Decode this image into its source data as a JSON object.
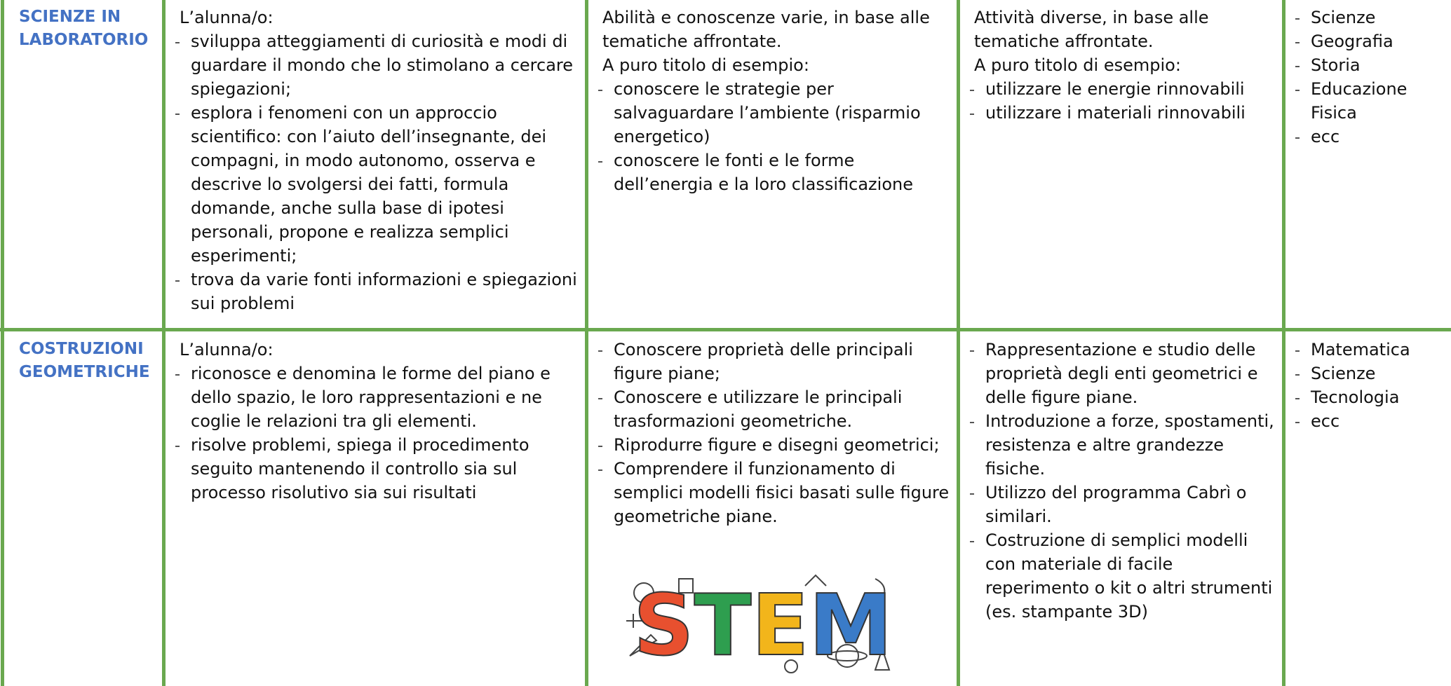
{
  "table": {
    "rows": [
      {
        "cells": [
          {
            "title": "SCIENZE IN LABORATORIO"
          },
          {
            "lines": [
              "L’alunna/o:"
            ],
            "items": [
              "sviluppa atteggiamenti di curiosità e modi di guardare il mondo che lo stimolano a cercare spiegazioni;",
              "esplora i fenomeni con un approccio scientifico: con l’aiuto dell’insegnante, dei compagni, in modo autonomo, osserva e descrive lo svolgersi dei fatti, formula domande, anche sulla base di ipotesi personali, propone e realizza semplici esperimenti;",
              "trova da varie fonti  informazioni e spiegazioni sui problemi"
            ]
          },
          {
            "lines": [
              "Abilità e conoscenze varie, in base alle tematiche affrontate.",
              "A puro titolo di esempio:"
            ],
            "items": [
              "conoscere le strategie per salvaguardare l’ambiente (risparmio energetico)",
              "conoscere le fonti e le forme dell’energia e la loro classificazione"
            ]
          },
          {
            "lines": [
              "Attività diverse, in base alle tematiche affrontate.",
              "A puro titolo di esempio:"
            ],
            "items": [
              "utilizzare le energie rinnovabili",
              "utilizzare i materiali rinnovabili"
            ]
          },
          {
            "items": [
              "Scienze",
              "Geografia",
              "Storia",
              "Educazione Fisica",
              "ecc"
            ]
          }
        ]
      },
      {
        "cells": [
          {
            "title": "COSTRUZIONI GEOMETRICHE"
          },
          {
            "lines": [
              "L’alunna/o:"
            ],
            "items": [
              "riconosce e denomina le forme del piano e dello spazio, le loro rappresentazioni e ne coglie le relazioni tra gli elementi.",
              "risolve problemi, spiega il procedimento seguito mantenendo il controllo sia sul processo risolutivo sia sui risultati"
            ]
          },
          {
            "items": [
              "Conoscere proprietà delle principali figure piane;",
              "Conoscere e utilizzare le principali trasformazioni geometriche.",
              "Riprodurre figure e disegni geometrici;",
              "Comprendere il funzionamento di semplici modelli fisici basati sulle figure geometriche piane."
            ],
            "image_text": "STEM"
          },
          {
            "items": [
              "Rappresentazione e studio delle proprietà degli enti geometrici e delle figure piane.",
              "Introduzione a forze, spostamenti, resistenza e altre grandezze fisiche.",
              "Utilizzo del programma Cabrì o similari.",
              "Costruzione di semplici modelli con materiale di facile reperimento o kit  o  altri strumenti (es. stampante 3D)"
            ]
          },
          {
            "items": [
              "Matematica",
              "Scienze",
              "Tecnologia",
              "ecc"
            ]
          }
        ]
      }
    ]
  }
}
